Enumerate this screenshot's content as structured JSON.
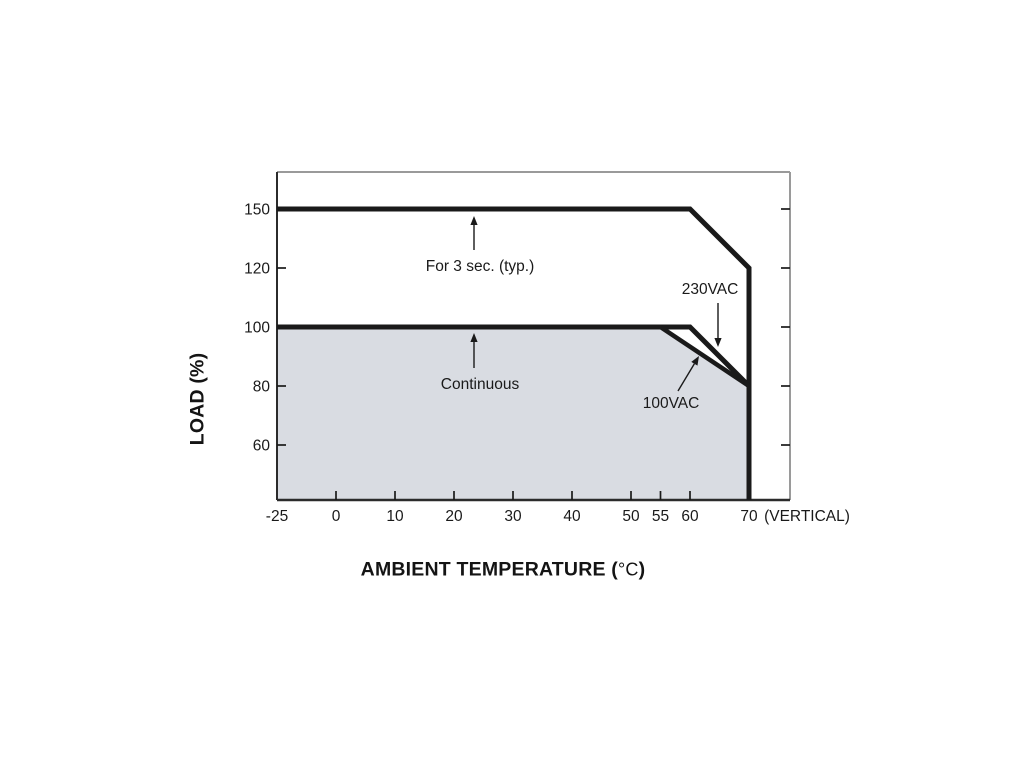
{
  "labels": {
    "y_axis_title": "LOAD (%)",
    "x_axis_title_prefix": "AMBIENT TEMPERATURE (",
    "x_axis_title_unit": "°C",
    "x_axis_title_suffix": ")"
  },
  "annotations": {
    "peak_label": "For 3 sec. (typ.)",
    "continuous_label": "Continuous",
    "vac230_label": "230VAC",
    "vac100_label": "100VAC"
  },
  "colors": {
    "line": "#1a1a1a",
    "region_fill": "#d9dce2",
    "border_light": "#9a9a9a",
    "border_dark": "#2b2b2b",
    "text": "#1a1a1a"
  },
  "chart_data": {
    "type": "line",
    "title": "",
    "xlabel": "AMBIENT TEMPERATURE (°C)",
    "ylabel": "LOAD (%)",
    "x_axis": {
      "ticks": [
        -25,
        0,
        10,
        20,
        30,
        40,
        50,
        55,
        60,
        70
      ],
      "extra_label": "(VERTICAL)"
    },
    "y_axis": {
      "ticks": [
        60,
        80,
        100,
        120,
        150
      ]
    },
    "series": [
      {
        "name": "For 3 sec. (typ.)",
        "points": [
          [
            -25,
            150
          ],
          [
            60,
            150
          ],
          [
            70,
            120
          ]
        ],
        "drops_to_bottom_at": 70
      },
      {
        "name": "Continuous 230VAC",
        "points": [
          [
            -25,
            100
          ],
          [
            60,
            100
          ],
          [
            70,
            80
          ]
        ]
      },
      {
        "name": "Continuous 100VAC",
        "points": [
          [
            55,
            100
          ],
          [
            70,
            80
          ]
        ]
      }
    ],
    "shaded_region": {
      "name": "continuous-operating-area",
      "points": [
        [
          -25,
          100
        ],
        [
          55,
          100
        ],
        [
          70,
          80
        ]
      ],
      "closes_to_bottom": true
    },
    "legend": "none",
    "grid": false
  }
}
